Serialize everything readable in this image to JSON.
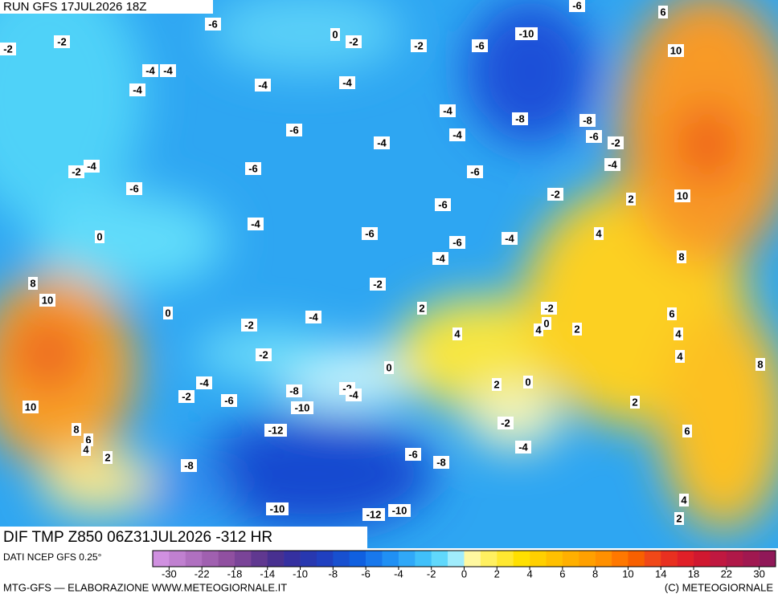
{
  "header": {
    "run": "RUN GFS 17JUL2026 18Z"
  },
  "map": {
    "title": "DIF TMP Z850 06Z31JUL2026 -312 HR",
    "contour_labels": [
      -6,
      -2,
      0,
      -2,
      -2,
      -6,
      -10,
      -6,
      6,
      10,
      -4,
      -4,
      -4,
      -4,
      -4,
      -4,
      -8,
      -8,
      -6,
      -4,
      -6,
      -2,
      -4,
      -2,
      -4,
      -6,
      -6,
      -4,
      -6,
      -2,
      2,
      10,
      -4,
      -6,
      0,
      -6,
      -6,
      -4,
      4,
      -4,
      8,
      8,
      -2,
      10,
      0,
      -2,
      2,
      6,
      -2,
      -4,
      4,
      4,
      0,
      2,
      4,
      -2,
      4,
      8,
      0,
      -4,
      -2,
      -6,
      -8,
      -2,
      -4,
      2,
      0,
      2,
      10,
      -10,
      -12,
      -2,
      8,
      6,
      4,
      6,
      2,
      -4,
      -6,
      -8,
      -8,
      4,
      -10,
      -12,
      -10,
      2,
      -2
    ]
  },
  "legend": {
    "source": "DATI NCEP GFS 0.25°",
    "colors": [
      "#d090e0",
      "#c080d0",
      "#b070c0",
      "#a060b0",
      "#9050a0",
      "#7a4498",
      "#603890",
      "#483090",
      "#3530a0",
      "#2838b0",
      "#2040c0",
      "#1850d0",
      "#1060e0",
      "#1878ec",
      "#2090f4",
      "#30a8f8",
      "#40c0fa",
      "#60d8fc",
      "#a0ecfc",
      "#fff8a0",
      "#fff060",
      "#ffe830",
      "#ffe000",
      "#ffd000",
      "#ffc000",
      "#ffb000",
      "#ffa000",
      "#ff9000",
      "#ff7800",
      "#f86000",
      "#f04818",
      "#e83020",
      "#e02028",
      "#d01830",
      "#c01840",
      "#b01848",
      "#a01850",
      "#901858"
    ],
    "ticks": [
      -30,
      -22,
      -18,
      -14,
      -10,
      -8,
      -6,
      -4,
      -2,
      0,
      2,
      4,
      6,
      8,
      10,
      14,
      18,
      22,
      30
    ]
  },
  "footer": {
    "credit": "MTG-GFS — ELABORAZIONE WWW.METEOGIORNALE.IT",
    "copyright": "(C) METEOGIORNALE"
  }
}
